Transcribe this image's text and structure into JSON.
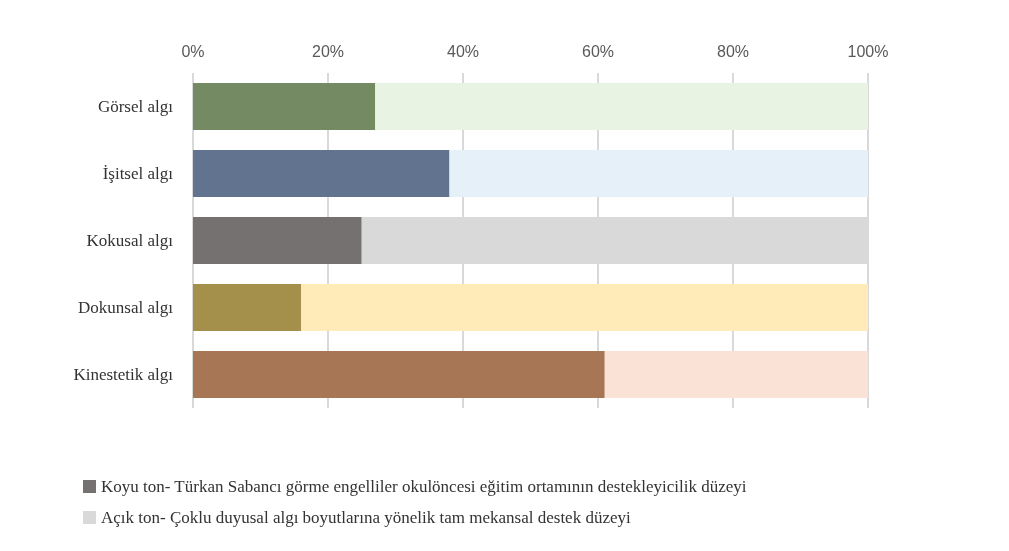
{
  "chart_data": {
    "type": "bar",
    "orientation": "horizontal",
    "stacked": true,
    "categories": [
      "Görsel algı",
      "İşitsel algı",
      "Kokusal algı",
      "Dokunsal algı",
      "Kinestetik algı"
    ],
    "series": [
      {
        "name": "Koyu ton- Türkan Sabancı görme engelliler okulöncesi eğitim ortamının destekleyicilik düzeyi",
        "color": "#767171",
        "colors": [
          "#748a63",
          "#62738f",
          "#767171",
          "#a48f4b",
          "#a67655"
        ],
        "values": [
          27,
          38,
          25,
          16,
          61
        ]
      },
      {
        "name": "Açık ton- Çoklu duyusal algı boyutlarına yönelik tam mekansal destek düzeyi",
        "color": "#d9d9d9",
        "colors": [
          "#e8f3e3",
          "#e6f0f9",
          "#d9d9d9",
          "#feebb8",
          "#fae3d6"
        ],
        "values": [
          73,
          62,
          75,
          84,
          39
        ]
      }
    ],
    "xlim": [
      0,
      100
    ],
    "xticks": [
      {
        "value": 0,
        "label": "0%"
      },
      {
        "value": 20,
        "label": "20%"
      },
      {
        "value": 40,
        "label": "40%"
      },
      {
        "value": 60,
        "label": "60%"
      },
      {
        "value": 80,
        "label": "80%"
      },
      {
        "value": 100,
        "label": "100%"
      }
    ],
    "grid": "x",
    "legend": "bottom left"
  }
}
